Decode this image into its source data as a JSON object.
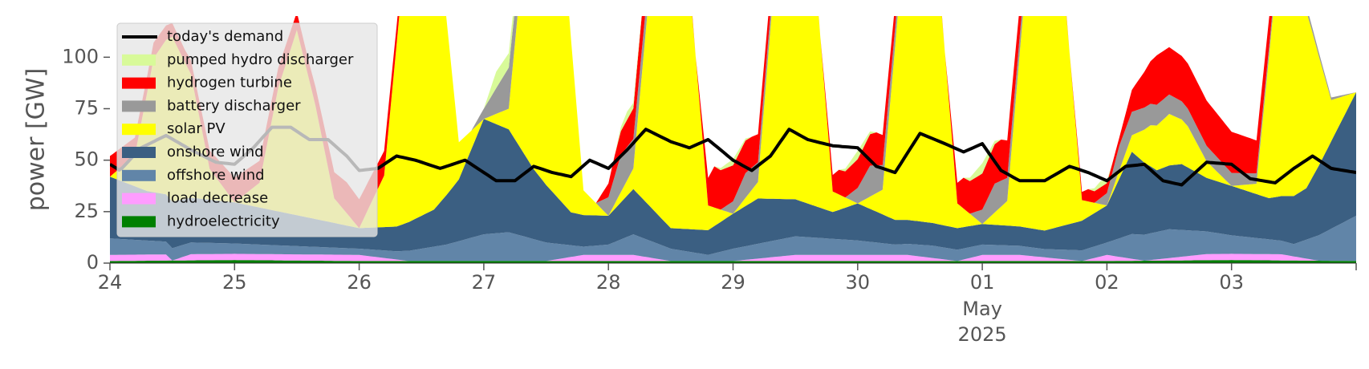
{
  "chart_data": {
    "type": "area",
    "title": "",
    "xlabel": "",
    "ylabel": "power [GW]",
    "ylim": [
      0,
      120
    ],
    "yticks": [
      0,
      25,
      50,
      75,
      100
    ],
    "x_start": "2025-04-24",
    "x_end": "2025-05-04",
    "xticks": [
      {
        "label": "24",
        "day": 0
      },
      {
        "label": "25",
        "day": 1
      },
      {
        "label": "26",
        "day": 2
      },
      {
        "label": "27",
        "day": 3
      },
      {
        "label": "28",
        "day": 4
      },
      {
        "label": "29",
        "day": 5
      },
      {
        "label": "30",
        "day": 6
      },
      {
        "label": "01",
        "day": 7,
        "sub1": "May",
        "sub2": "2025"
      },
      {
        "label": "02",
        "day": 8
      },
      {
        "label": "03",
        "day": 9
      }
    ],
    "grid": false,
    "legend_position": "upper-left",
    "series_order_bottom_to_top": [
      "hydroelectricity",
      "load decrease",
      "offshore wind",
      "onshore wind",
      "solar PV",
      "battery discharger",
      "hydrogen turbine",
      "pumped hydro discharger"
    ],
    "series": [
      {
        "name": "hydroelectricity",
        "color": "#008000",
        "x": [
          0,
          1,
          2,
          3,
          4,
          5,
          6,
          7,
          8,
          9,
          10
        ],
        "values": [
          1,
          1.5,
          1,
          1,
          1,
          1,
          1,
          1,
          1,
          1.5,
          1
        ]
      },
      {
        "name": "load decrease",
        "color": "#ff9cff",
        "x": [
          0,
          0.2,
          0.45,
          0.5,
          0.65,
          1,
          1.3,
          1.7,
          2,
          2.4,
          3,
          3.5,
          3.8,
          4.2,
          4.5,
          5,
          5.5,
          6,
          6.4,
          6.8,
          7,
          7.3,
          7.8,
          8,
          8.3,
          8.8,
          9,
          9.4,
          9.7,
          10
        ],
        "values": [
          3,
          3,
          3,
          0,
          3,
          3,
          3,
          3,
          3,
          0,
          0,
          0,
          3,
          3,
          0,
          0,
          3,
          3,
          3,
          0,
          3,
          3,
          0,
          3,
          0,
          3,
          3,
          3,
          0,
          0
        ]
      },
      {
        "name": "offshore wind",
        "color": "#6185a8",
        "x": [
          0,
          0.5,
          1,
          1.5,
          2,
          2.3,
          2.7,
          3,
          3.2,
          3.5,
          3.8,
          4,
          4.2,
          4.5,
          4.8,
          5,
          5.5,
          6,
          6.3,
          6.6,
          7,
          7.5,
          8,
          8.2,
          8.5,
          9,
          9.5,
          10
        ],
        "values": [
          8,
          6,
          5,
          4,
          3,
          4,
          8,
          13,
          14,
          9,
          4,
          5,
          10,
          6,
          3,
          6,
          9,
          7,
          5,
          6,
          5,
          4,
          6,
          12,
          14,
          9,
          6,
          22
        ]
      },
      {
        "name": "onshore wind",
        "color": "#3b5f82",
        "x": [
          0,
          0.3,
          0.6,
          1,
          1.3,
          1.6,
          2,
          2.3,
          2.6,
          2.8,
          3,
          3.2,
          3.4,
          3.7,
          4,
          4.2,
          4.5,
          4.8,
          5,
          5.2,
          5.5,
          5.8,
          6,
          6.3,
          6.6,
          7,
          7.5,
          8,
          8.2,
          8.4,
          8.6,
          8.8,
          9,
          9.3,
          9.6,
          10
        ],
        "values": [
          30,
          24,
          22,
          20,
          17,
          14,
          10,
          12,
          18,
          30,
          56,
          50,
          34,
          16,
          14,
          22,
          10,
          12,
          17,
          22,
          18,
          13,
          18,
          12,
          11,
          10,
          9,
          18,
          40,
          30,
          32,
          26,
          24,
          20,
          25,
          60
        ]
      },
      {
        "name": "solar PV",
        "color": "#ffff00",
        "x": [
          0,
          0.2,
          0.35,
          0.5,
          0.65,
          0.8,
          1,
          1.2,
          1.35,
          1.5,
          1.65,
          1.8,
          2,
          2.2,
          2.35,
          2.5,
          2.65,
          2.8,
          3,
          3.2,
          3.35,
          3.5,
          3.65,
          3.8,
          4,
          4.2,
          4.35,
          4.5,
          4.65,
          4.8,
          5,
          5.2,
          5.35,
          5.5,
          5.65,
          5.8,
          6,
          6.2,
          6.35,
          6.5,
          6.65,
          6.8,
          7,
          7.2,
          7.35,
          7.5,
          7.65,
          7.8,
          8,
          8.2,
          8.35,
          8.5,
          8.65,
          8.8,
          9,
          9.2,
          9.35,
          9.5,
          9.65,
          9.8,
          10
        ],
        "values": [
          0,
          15,
          65,
          80,
          60,
          15,
          0,
          12,
          60,
          90,
          55,
          12,
          0,
          25,
          120,
          120,
          120,
          18,
          0,
          10,
          120,
          120,
          120,
          12,
          0,
          10,
          120,
          120,
          120,
          12,
          0,
          8,
          120,
          120,
          120,
          10,
          0,
          12,
          120,
          120,
          120,
          12,
          0,
          12,
          120,
          120,
          120,
          10,
          0,
          8,
          20,
          25,
          20,
          8,
          0,
          5,
          100,
          118,
          70,
          20,
          0
        ]
      },
      {
        "name": "battery discharger",
        "color": "#999999",
        "x": [
          0,
          2.5,
          2.9,
          3,
          3.2,
          3.5,
          3.9,
          4.1,
          4.6,
          4.9,
          5.1,
          5.6,
          5.9,
          6.1,
          6.6,
          6.9,
          7.1,
          7.6,
          7.9,
          8.1,
          10
        ],
        "values": [
          0,
          0,
          0,
          5,
          20,
          0,
          0,
          18,
          0,
          0,
          12,
          0,
          0,
          15,
          0,
          0,
          14,
          0,
          0,
          12,
          0
        ]
      },
      {
        "name": "hydrogen turbine",
        "color": "#ff0000",
        "x": [
          0,
          0.3,
          0.6,
          1,
          1.3,
          1.6,
          1.9,
          2.2,
          2.6,
          3.9,
          4.05,
          4.3,
          4.7,
          4.85,
          5.15,
          5.7,
          5.85,
          6.15,
          6.7,
          6.85,
          7.15,
          7.7,
          7.85,
          8.1,
          8.4,
          8.6,
          8.8,
          9,
          9.3,
          9.6,
          10
        ],
        "values": [
          10,
          8,
          6,
          12,
          10,
          8,
          15,
          12,
          0,
          0,
          10,
          18,
          0,
          20,
          15,
          0,
          12,
          16,
          0,
          15,
          20,
          0,
          6,
          4,
          24,
          22,
          22,
          20,
          14,
          0,
          0
        ]
      },
      {
        "name": "pumped hydro discharger",
        "color": "#d8fa99",
        "x": [
          0,
          2.8,
          3,
          3.1,
          3.3,
          3.6,
          4.05,
          4.15,
          4.3,
          4.85,
          5,
          5.15,
          5.85,
          6,
          6.15,
          6.85,
          7,
          7.15,
          7.85,
          7.95,
          8.05,
          10
        ],
        "values": [
          0,
          0,
          0,
          8,
          6,
          0,
          0,
          4,
          0,
          0,
          3,
          0,
          0,
          4,
          0,
          0,
          5,
          0,
          0,
          3,
          0,
          0
        ]
      },
      {
        "name": "today's demand",
        "color": "#000000",
        "kind": "line",
        "x": [
          0,
          0.08,
          0.25,
          0.45,
          0.65,
          0.85,
          1,
          1.15,
          1.3,
          1.45,
          1.6,
          1.75,
          1.9,
          2,
          2.15,
          2.3,
          2.45,
          2.65,
          2.85,
          3,
          3.1,
          3.25,
          3.4,
          3.55,
          3.7,
          3.85,
          4,
          4.15,
          4.3,
          4.5,
          4.65,
          4.8,
          5,
          5.15,
          5.3,
          5.45,
          5.6,
          5.8,
          6,
          6.15,
          6.3,
          6.5,
          6.7,
          6.85,
          7,
          7.15,
          7.3,
          7.5,
          7.7,
          7.85,
          8,
          8.15,
          8.3,
          8.45,
          8.6,
          8.8,
          9,
          9.15,
          9.35,
          9.5,
          9.65,
          9.8,
          10
        ],
        "values": [
          48,
          45,
          56,
          62,
          55,
          49,
          48,
          56,
          66,
          66,
          60,
          60,
          52,
          45,
          46,
          52,
          50,
          46,
          50,
          44,
          40,
          40,
          47,
          44,
          42,
          50,
          46,
          55,
          65,
          59,
          56,
          60,
          50,
          45,
          52,
          65,
          60,
          57,
          56,
          47,
          44,
          63,
          58,
          54,
          58,
          45,
          40,
          40,
          47,
          44,
          40,
          47,
          48,
          40,
          38,
          49,
          48,
          41,
          39,
          46,
          52,
          46,
          44
        ]
      }
    ]
  },
  "legend_items": [
    {
      "label": "today's demand",
      "color": "#000000",
      "kind": "line"
    },
    {
      "label": "pumped hydro discharger",
      "color": "#d8fa99",
      "kind": "patch"
    },
    {
      "label": "hydrogen turbine",
      "color": "#ff0000",
      "kind": "patch"
    },
    {
      "label": "battery discharger",
      "color": "#999999",
      "kind": "patch"
    },
    {
      "label": "solar PV",
      "color": "#ffff00",
      "kind": "patch"
    },
    {
      "label": "onshore wind",
      "color": "#3b5f82",
      "kind": "patch"
    },
    {
      "label": "offshore wind",
      "color": "#6185a8",
      "kind": "patch"
    },
    {
      "label": "load decrease",
      "color": "#ff9cff",
      "kind": "patch"
    },
    {
      "label": "hydroelectricity",
      "color": "#008000",
      "kind": "patch"
    }
  ]
}
